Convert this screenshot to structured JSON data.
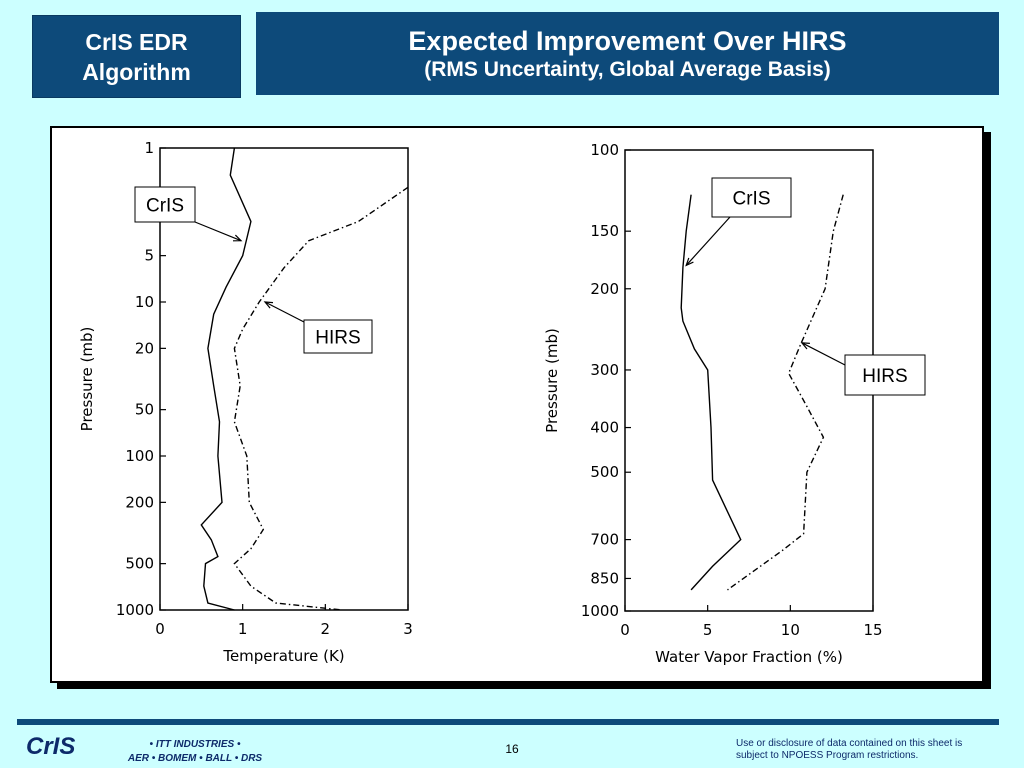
{
  "header": {
    "section_line1": "CrIS EDR",
    "section_line2": "Algorithm",
    "title": "Expected Improvement Over HIRS",
    "subtitle": "(RMS Uncertainty, Global Average Basis)"
  },
  "footer": {
    "brand": "CrIS",
    "partners_line1": "• ITT INDUSTRIES •",
    "partners_line2": "AER • BOMEM • BALL • DRS",
    "page_number": "16",
    "disclaimer_line1": "Use or disclosure of data contained on this sheet is",
    "disclaimer_line2": "subject to NPOESS Program restrictions."
  },
  "colors": {
    "title_bg": "#0d4a7a",
    "page_bg": "#ccffff"
  },
  "chart_data": [
    {
      "type": "line",
      "xlabel": "Temperature (K)",
      "ylabel": "Pressure (mb)",
      "xlim": [
        0,
        3
      ],
      "ylim": [
        1000,
        1
      ],
      "yscale": "log",
      "xticks": [
        0,
        1,
        2,
        3
      ],
      "yticks": [
        1,
        5,
        10,
        20,
        50,
        100,
        200,
        500,
        1000
      ],
      "series": [
        {
          "name": "CrIS",
          "style": "solid",
          "points": [
            [
              0.9,
              1
            ],
            [
              0.85,
              1.5
            ],
            [
              1.1,
              3
            ],
            [
              1.0,
              5
            ],
            [
              0.8,
              8
            ],
            [
              0.65,
              12
            ],
            [
              0.58,
              20
            ],
            [
              0.65,
              35
            ],
            [
              0.72,
              60
            ],
            [
              0.7,
              100
            ],
            [
              0.75,
              200
            ],
            [
              0.5,
              280
            ],
            [
              0.62,
              350
            ],
            [
              0.7,
              450
            ],
            [
              0.55,
              500
            ],
            [
              0.53,
              700
            ],
            [
              0.58,
              900
            ],
            [
              0.9,
              1000
            ]
          ]
        },
        {
          "name": "HIRS",
          "style": "dashdot",
          "points": [
            [
              3.0,
              1.8
            ],
            [
              2.4,
              3
            ],
            [
              1.8,
              4
            ],
            [
              1.5,
              6
            ],
            [
              1.2,
              10
            ],
            [
              1.0,
              15
            ],
            [
              0.9,
              20
            ],
            [
              0.97,
              35
            ],
            [
              0.9,
              60
            ],
            [
              1.05,
              100
            ],
            [
              1.08,
              200
            ],
            [
              1.25,
              300
            ],
            [
              1.1,
              400
            ],
            [
              0.9,
              500
            ],
            [
              1.1,
              700
            ],
            [
              1.4,
              900
            ],
            [
              2.2,
              1000
            ]
          ]
        }
      ],
      "annotations": [
        {
          "text": "CrIS",
          "target": [
            0.98,
            4
          ]
        },
        {
          "text": "HIRS",
          "target": [
            1.27,
            10
          ]
        }
      ]
    },
    {
      "type": "line",
      "xlabel": "Water Vapor Fraction (%)",
      "ylabel": "Pressure (mb)",
      "xlim": [
        0,
        15
      ],
      "ylim": [
        1000,
        100
      ],
      "yscale": "log",
      "xticks": [
        0,
        5,
        10,
        15
      ],
      "yticks": [
        100,
        150,
        200,
        300,
        400,
        500,
        700,
        850,
        1000
      ],
      "series": [
        {
          "name": "CrIS",
          "style": "solid",
          "points": [
            [
              4.0,
              125
            ],
            [
              3.7,
              150
            ],
            [
              3.5,
              180
            ],
            [
              3.4,
              220
            ],
            [
              3.5,
              235
            ],
            [
              4.2,
              270
            ],
            [
              5.0,
              300
            ],
            [
              5.2,
              400
            ],
            [
              5.3,
              520
            ],
            [
              7.0,
              700
            ],
            [
              5.3,
              800
            ],
            [
              4.0,
              900
            ]
          ]
        },
        {
          "name": "HIRS",
          "style": "dashdot",
          "points": [
            [
              13.2,
              125
            ],
            [
              12.6,
              150
            ],
            [
              12.1,
              200
            ],
            [
              10.6,
              265
            ],
            [
              9.9,
              305
            ],
            [
              11.0,
              360
            ],
            [
              12.0,
              420
            ],
            [
              11.0,
              500
            ],
            [
              10.8,
              680
            ],
            [
              9.5,
              740
            ],
            [
              6.2,
              900
            ]
          ]
        }
      ],
      "annotations": [
        {
          "text": "CrIS",
          "target": [
            3.7,
            178
          ]
        },
        {
          "text": "HIRS",
          "target": [
            10.7,
            262
          ]
        }
      ]
    }
  ]
}
